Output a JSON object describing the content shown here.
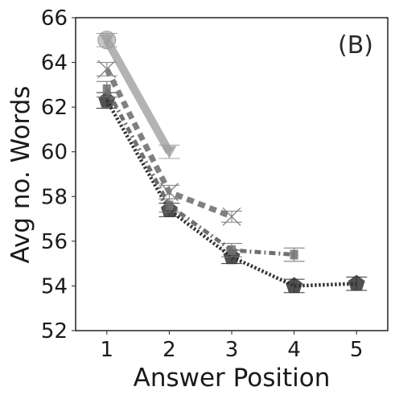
{
  "chart_data": {
    "type": "line",
    "title": "",
    "panel_label": "(B)",
    "xlabel": "Answer Position",
    "ylabel": "Avg no. Words",
    "xlim": [
      0.5,
      5.5
    ],
    "ylim": [
      52,
      66
    ],
    "x_ticks": [
      1,
      2,
      3,
      4,
      5
    ],
    "y_ticks": [
      52,
      54,
      56,
      58,
      60,
      62,
      64,
      66
    ],
    "grid": false,
    "legend": "none",
    "series": [
      {
        "x": [
          1,
          2
        ],
        "values": [
          65.0,
          60.0
        ],
        "color": "#a0a0a0",
        "line_style": "solid",
        "marker": "triangle-down",
        "start_marker": "circle",
        "error": [
          0.3,
          0.3
        ]
      },
      {
        "x": [
          1,
          2,
          3
        ],
        "values": [
          63.7,
          58.2,
          57.1
        ],
        "color": "#808080",
        "line_style": "dashed",
        "marker": "x",
        "error": [
          0.3,
          0.3,
          0.25
        ]
      },
      {
        "x": [
          1,
          2,
          3,
          4
        ],
        "values": [
          62.8,
          57.6,
          55.6,
          55.4
        ],
        "color": "#707070",
        "line_style": "dash-dot",
        "marker": "square",
        "error": [
          0.35,
          0.3,
          0.3,
          0.3
        ]
      },
      {
        "x": [
          1,
          2,
          3,
          4,
          5
        ],
        "values": [
          62.3,
          57.4,
          55.3,
          54.0,
          54.1
        ],
        "color": "#333333",
        "line_style": "dotted",
        "marker": "pentagon",
        "error": [
          0.35,
          0.3,
          0.3,
          0.3,
          0.3
        ]
      }
    ]
  }
}
